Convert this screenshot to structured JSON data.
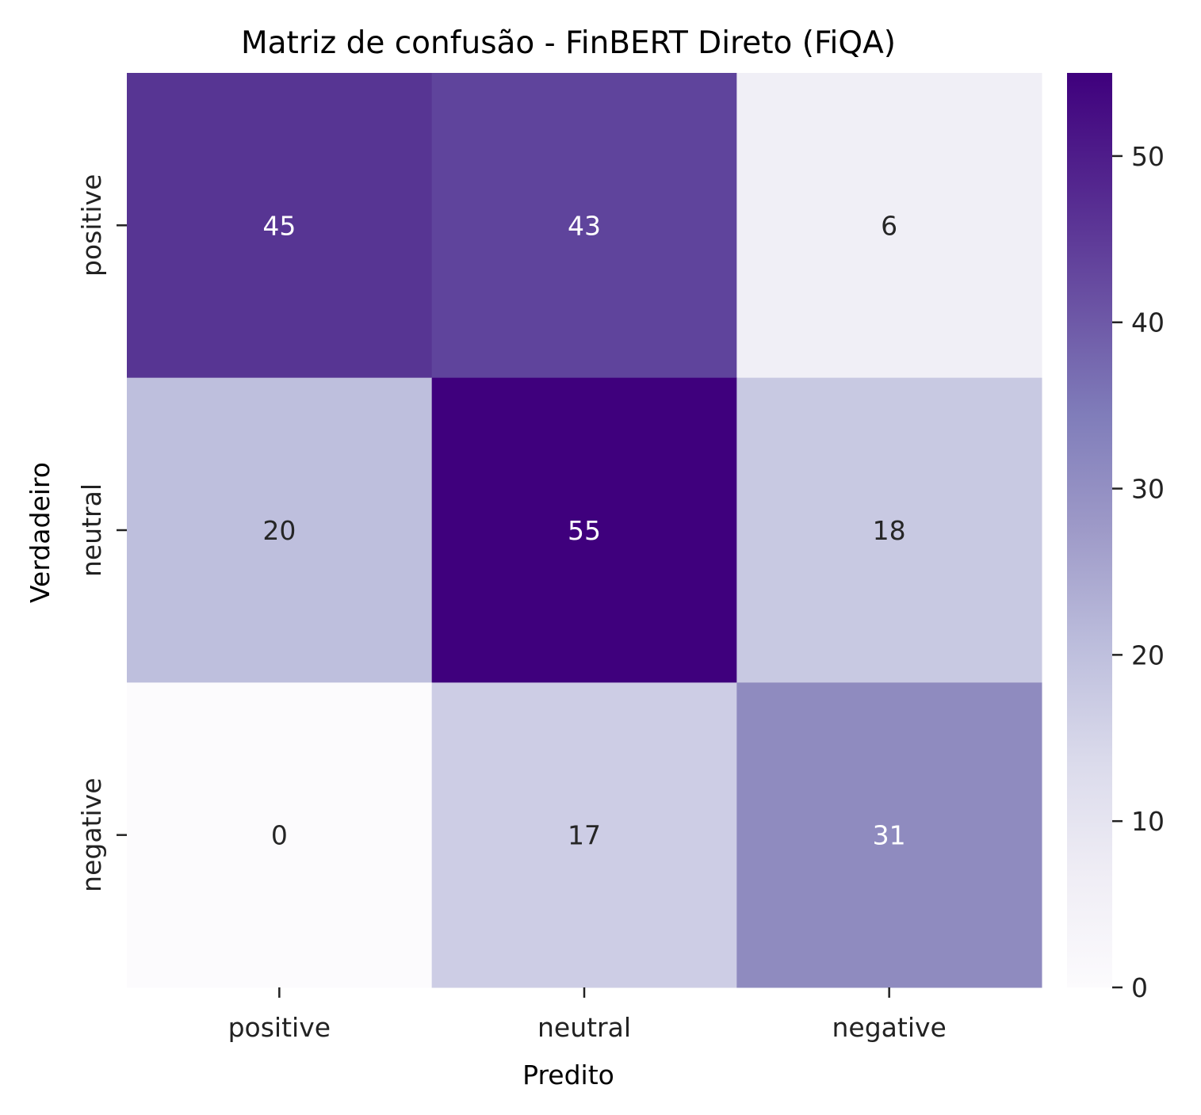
{
  "chart_data": {
    "type": "heatmap",
    "title": "Matriz de confusão - FinBERT Direto (FiQA)",
    "xlabel": "Predito",
    "ylabel": "Verdadeiro",
    "x_categories": [
      "positive",
      "neutral",
      "negative"
    ],
    "y_categories": [
      "positive",
      "neutral",
      "negative"
    ],
    "values": [
      [
        45,
        43,
        6
      ],
      [
        20,
        55,
        18
      ],
      [
        0,
        17,
        31
      ]
    ],
    "colormap": "Purples",
    "vmin": 0,
    "vmax": 55,
    "colorbar_ticks": [
      "0",
      "10",
      "20",
      "30",
      "40",
      "50"
    ],
    "colors": {
      "0": "#fcfbfd",
      "6": "#f0eff6",
      "17": "#cdcde5",
      "18": "#c8c9e2",
      "20": "#bebfdd",
      "31": "#8f8bbf",
      "43": "#5f449c",
      "45": "#573593",
      "55": "#3f007d"
    },
    "colorbar_colors": [
      "#fcfbfd",
      "#efedf5",
      "#dadaeb",
      "#bcbddc",
      "#9e9ac8",
      "#807dba",
      "#6a51a3",
      "#54278f",
      "#3f007d"
    ]
  }
}
